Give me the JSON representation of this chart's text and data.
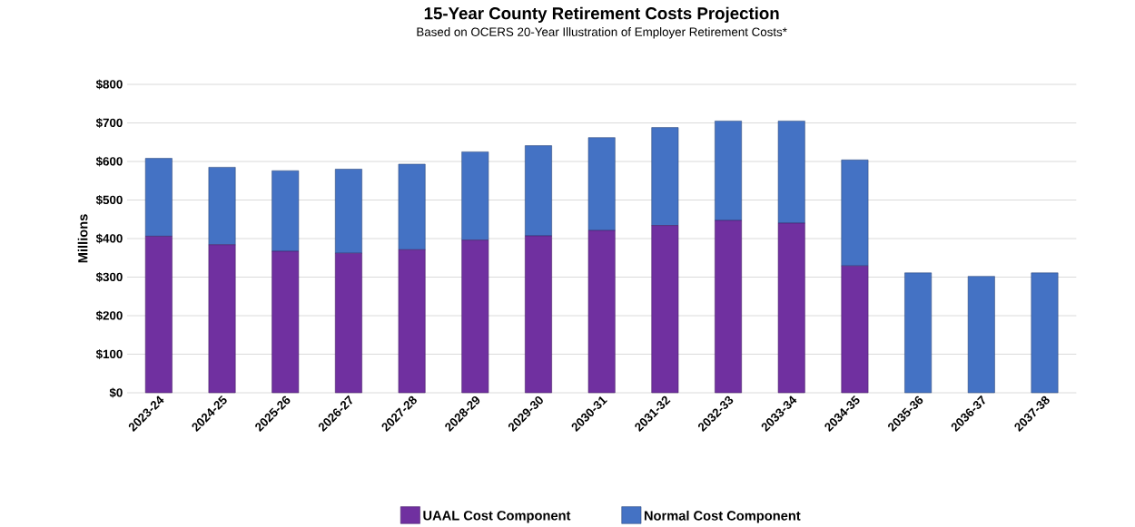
{
  "chart_data": {
    "type": "bar",
    "title": "15-Year County Retirement Costs Projection",
    "subtitle": "Based on OCERS 20-Year Illustration of Employer Retirement Costs*",
    "ylabel": "Millions",
    "categories": [
      "2023-24",
      "2024-25",
      "2025-26",
      "2026-27",
      "2027-28",
      "2028-29",
      "2029-30",
      "2030-31",
      "2031-32",
      "2032-33",
      "2033-34",
      "2034-35",
      "2035-36",
      "2036-37",
      "2037-38"
    ],
    "series": [
      {
        "name": "UAAL  Cost Component",
        "color": "#7030a0",
        "values": [
          406,
          384,
          367,
          362,
          371,
          396,
          407,
          421,
          434,
          447,
          440,
          329,
          0,
          0,
          0
        ]
      },
      {
        "name": "Normal Cost Component",
        "color": "#4472c4",
        "values": [
          202,
          201,
          209,
          218,
          222,
          229,
          234,
          241,
          254,
          258,
          265,
          275,
          311,
          302,
          311
        ]
      }
    ],
    "stacked": true,
    "ylim": [
      0,
      800
    ],
    "yticks": [
      {
        "value": 0,
        "label": "$0"
      },
      {
        "value": 100,
        "label": "$100"
      },
      {
        "value": 200,
        "label": "$200"
      },
      {
        "value": 300,
        "label": "$300"
      },
      {
        "value": 400,
        "label": "$400"
      },
      {
        "value": 500,
        "label": "$500"
      },
      {
        "value": 600,
        "label": "$600"
      },
      {
        "value": 700,
        "label": "$700"
      },
      {
        "value": 800,
        "label": "$800"
      }
    ],
    "grid": "y",
    "legend": "bottom"
  }
}
